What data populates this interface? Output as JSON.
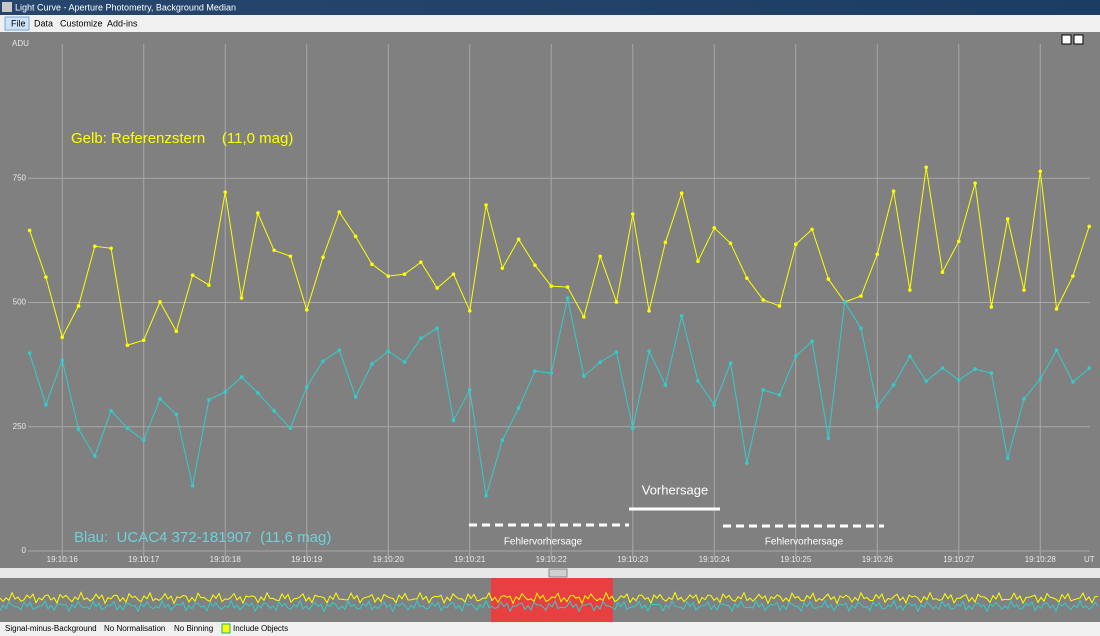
{
  "window": {
    "title": "Light Curve - Aperture Photometry, Background Median",
    "menu": [
      "File",
      "Data",
      "Customize",
      "Add-ins"
    ]
  },
  "chart_data": {
    "type": "line",
    "y_label": "ADU",
    "x_label": "UT",
    "x": [
      15.6,
      15.8,
      16,
      16.2,
      16.4,
      16.6,
      16.8,
      17,
      17.2,
      17.4,
      17.6,
      17.8,
      18,
      18.2,
      18.4,
      18.6,
      18.8,
      19,
      19.2,
      19.4,
      19.6,
      19.8,
      20,
      20.2,
      20.4,
      20.6,
      20.8,
      21,
      21.2,
      21.4,
      21.6,
      21.8,
      22,
      22.2,
      22.4,
      22.6,
      22.8,
      23,
      23.2,
      23.4,
      23.6,
      23.8,
      24,
      24.2,
      24.4,
      24.6,
      24.8,
      25,
      25.2,
      25.4,
      25.6,
      25.8,
      26,
      26.2,
      26.4,
      26.6,
      26.8,
      27,
      27.2,
      27.4,
      27.6,
      27.8,
      28,
      28.2,
      28.4,
      28.6
    ],
    "xlim": [
      15.58,
      28.61
    ],
    "xticks": [
      {
        "value": 16,
        "label": "19:10:16"
      },
      {
        "value": 17,
        "label": "19:10:17"
      },
      {
        "value": 18,
        "label": "19:10:18"
      },
      {
        "value": 19,
        "label": "19:10:19"
      },
      {
        "value": 20,
        "label": "19:10:20"
      },
      {
        "value": 21,
        "label": "19:10:21"
      },
      {
        "value": 22,
        "label": "19:10:22"
      },
      {
        "value": 23,
        "label": "19:10:23"
      },
      {
        "value": 24,
        "label": "19:10:24"
      },
      {
        "value": 25,
        "label": "19:10:25"
      },
      {
        "value": 26,
        "label": "19:10:26"
      },
      {
        "value": 27,
        "label": "19:10:27"
      },
      {
        "value": 28,
        "label": "19:10:28"
      }
    ],
    "ylim": [
      0,
      1020
    ],
    "yticks": [
      0,
      250,
      500,
      750
    ],
    "grid": true,
    "series": [
      {
        "name": "Gelb: Referenzstern    (11,0 mag)",
        "color": "#ffff00",
        "values": [
          645,
          551,
          430,
          493,
          613,
          609,
          414,
          424,
          501,
          442,
          555,
          535,
          722,
          509,
          680,
          605,
          593,
          485,
          591,
          682,
          633,
          577,
          553,
          557,
          581,
          529,
          557,
          483,
          696,
          569,
          627,
          575,
          533,
          531,
          471,
          593,
          501,
          678,
          483,
          621,
          720,
          583,
          650,
          619,
          549,
          505,
          493,
          617,
          647,
          547,
          501,
          513,
          597,
          724,
          525,
          772,
          561,
          623,
          740,
          491,
          668,
          525,
          764,
          487,
          553,
          653
        ]
      },
      {
        "name": "Blau:  UCAC4 372-181907  (11,6 mag)",
        "color": "#33cccc",
        "values": [
          398,
          294,
          384,
          245,
          191,
          282,
          247,
          223,
          306,
          275,
          131,
          304,
          320,
          350,
          318,
          282,
          247,
          330,
          382,
          404,
          310,
          376,
          402,
          380,
          428,
          448,
          263,
          324,
          111,
          223,
          288,
          362,
          358,
          509,
          352,
          380,
          400,
          247,
          402,
          334,
          473,
          342,
          294,
          378,
          177,
          324,
          314,
          392,
          422,
          227,
          501,
          448,
          290,
          334,
          392,
          342,
          368,
          344,
          366,
          358,
          187,
          306,
          346,
          404,
          340,
          368
        ]
      }
    ],
    "annotations": [
      "Vorhersage",
      "Fehlervorhersage",
      "Fehlervorhersage"
    ]
  },
  "toolbar": [
    "Signal-minus-Background",
    "No Normalisation",
    "No Binning",
    "Include Objects"
  ]
}
